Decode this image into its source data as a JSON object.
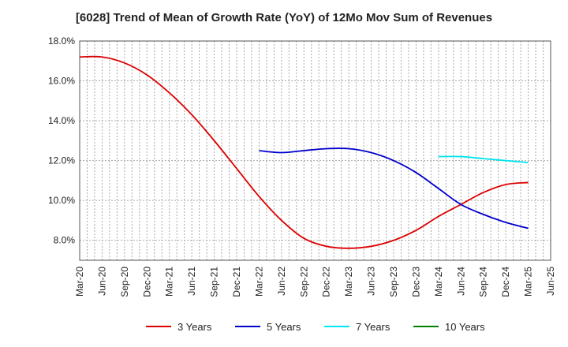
{
  "chart_data": {
    "type": "line",
    "title": "[6028]  Trend of Mean of Growth Rate (YoY) of 12Mo Mov Sum of Revenues",
    "xlabel": "",
    "ylabel": "",
    "ylim": [
      7.0,
      18.0
    ],
    "yticks": [
      8.0,
      10.0,
      12.0,
      14.0,
      16.0,
      18.0
    ],
    "ytick_labels": [
      "8.0%",
      "10.0%",
      "12.0%",
      "14.0%",
      "16.0%",
      "18.0%"
    ],
    "categories": [
      "Mar-20",
      "Jun-20",
      "Sep-20",
      "Dec-20",
      "Mar-21",
      "Jun-21",
      "Sep-21",
      "Dec-21",
      "Mar-22",
      "Jun-22",
      "Sep-22",
      "Dec-22",
      "Mar-23",
      "Jun-23",
      "Sep-23",
      "Dec-23",
      "Mar-24",
      "Jun-24",
      "Sep-24",
      "Dec-24",
      "Mar-25",
      "Jun-25"
    ],
    "grid": true,
    "legend_position": "bottom",
    "series": [
      {
        "name": "3 Years",
        "color": "#dd0000",
        "values": [
          17.2,
          17.2,
          16.9,
          16.3,
          15.4,
          14.3,
          13.0,
          11.6,
          10.2,
          9.0,
          8.1,
          7.7,
          7.6,
          7.7,
          8.0,
          8.5,
          9.2,
          9.8,
          10.4,
          10.8,
          10.9,
          null
        ]
      },
      {
        "name": "5 Years",
        "color": "#0000cc",
        "values": [
          null,
          null,
          null,
          null,
          null,
          null,
          null,
          null,
          12.5,
          12.4,
          12.5,
          12.6,
          12.6,
          12.4,
          12.0,
          11.4,
          10.6,
          9.8,
          9.3,
          8.9,
          8.6,
          null
        ]
      },
      {
        "name": "7 Years",
        "color": "#00e5ee",
        "values": [
          null,
          null,
          null,
          null,
          null,
          null,
          null,
          null,
          null,
          null,
          null,
          null,
          null,
          null,
          null,
          null,
          12.2,
          12.2,
          12.1,
          12.0,
          11.9,
          null
        ]
      },
      {
        "name": "10 Years",
        "color": "#008000",
        "values": [
          null,
          null,
          null,
          null,
          null,
          null,
          null,
          null,
          null,
          null,
          null,
          null,
          null,
          null,
          null,
          null,
          null,
          null,
          null,
          null,
          null,
          null
        ]
      }
    ]
  }
}
